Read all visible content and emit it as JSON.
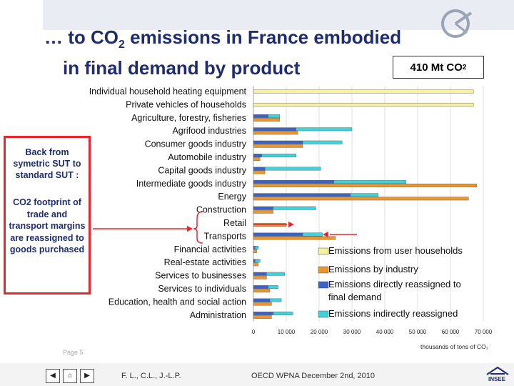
{
  "slide": {
    "title_line1_pre": "… to CO",
    "title_line1_sub": "2",
    "title_line1_post": " emissions in France embodied",
    "title_line2": "in final demand by product",
    "total_pre": "410 Mt CO",
    "total_sub": "2",
    "note_1": "Back from symetric SUT to standard SUT :",
    "note_2": "CO2 footprint of trade and transport margins are reassigned to goods purchased",
    "page_label": "Page 5",
    "footer_authors": "F. L., C.L., J.-L.P.",
    "footer_event": "OECD WPNA December 2nd, 2010",
    "logo_text": "INSEE"
  },
  "colors": {
    "title": "#1f2d6e",
    "user_households": "#f6f19c",
    "industry": "#e8962f",
    "direct": "#3b63c6",
    "indirect": "#3fd2d8",
    "annotation_red": "#e8262d"
  },
  "chart_data": {
    "type": "bar",
    "orientation": "horizontal",
    "stacked": true,
    "categories": [
      "Individual household heating equipment",
      "Private vehicles of households",
      "Agriculture, forestry, fisheries",
      "Agrifood industries",
      "Consumer goods industry",
      "Automobile industry",
      "Capital goods industry",
      "Intermediate goods industry",
      "Energy",
      "Construction",
      "Retail",
      "Transports",
      "Financial activities",
      "Real-estate activities",
      "Services to businesses",
      "Services to individuals",
      "Education, health and social action",
      "Administration"
    ],
    "bars": [
      [
        {
          "series": "user",
          "value": 67000
        }
      ],
      [
        {
          "series": "user",
          "value": 67000
        }
      ],
      [
        {
          "series": "direct",
          "value": 4500
        },
        {
          "series": "indirect",
          "value": 3500
        },
        {
          "series": "industry",
          "value": 8000
        }
      ],
      [
        {
          "series": "direct",
          "value": 13000
        },
        {
          "series": "indirect",
          "value": 17000
        },
        {
          "series": "industry",
          "value": 13500
        }
      ],
      [
        {
          "series": "direct",
          "value": 15000
        },
        {
          "series": "indirect",
          "value": 12000
        },
        {
          "series": "industry",
          "value": 15000
        }
      ],
      [
        {
          "series": "direct",
          "value": 2500
        },
        {
          "series": "indirect",
          "value": 10500
        },
        {
          "series": "industry",
          "value": 2000
        }
      ],
      [
        {
          "series": "direct",
          "value": 3500
        },
        {
          "series": "indirect",
          "value": 17000
        },
        {
          "series": "industry",
          "value": 3500
        }
      ],
      [
        {
          "series": "direct",
          "value": 24500
        },
        {
          "series": "indirect",
          "value": 22000
        },
        {
          "series": "industry",
          "value": 68000
        }
      ],
      [
        {
          "series": "direct",
          "value": 29500
        },
        {
          "series": "indirect",
          "value": 8500
        },
        {
          "series": "industry",
          "value": 65500
        }
      ],
      [
        {
          "series": "direct",
          "value": 6000
        },
        {
          "series": "indirect",
          "value": 13000
        },
        {
          "series": "industry",
          "value": 6000
        }
      ],
      [
        {
          "series": "industry",
          "value": 10000
        }
      ],
      [
        {
          "series": "direct",
          "value": 15000
        },
        {
          "series": "indirect",
          "value": 6000
        },
        {
          "series": "industry",
          "value": 25000
        }
      ],
      [
        {
          "series": "direct",
          "value": 500
        },
        {
          "series": "indirect",
          "value": 1000
        },
        {
          "series": "industry",
          "value": 1000
        }
      ],
      [
        {
          "series": "direct",
          "value": 500
        },
        {
          "series": "indirect",
          "value": 1500
        },
        {
          "series": "industry",
          "value": 1500
        }
      ],
      [
        {
          "series": "direct",
          "value": 4000
        },
        {
          "series": "indirect",
          "value": 5500
        },
        {
          "series": "industry",
          "value": 4000
        }
      ],
      [
        {
          "series": "direct",
          "value": 4500
        },
        {
          "series": "indirect",
          "value": 3000
        },
        {
          "series": "industry",
          "value": 5000
        }
      ],
      [
        {
          "series": "direct",
          "value": 5000
        },
        {
          "series": "indirect",
          "value": 3500
        },
        {
          "series": "industry",
          "value": 5500
        }
      ],
      [
        {
          "series": "direct",
          "value": 6000
        },
        {
          "series": "indirect",
          "value": 6000
        },
        {
          "series": "industry",
          "value": 5500
        }
      ]
    ],
    "series": [
      {
        "key": "user",
        "name": "Emissions from user households",
        "color": "#f6f19c"
      },
      {
        "key": "industry",
        "name": "Emissions by industry",
        "color": "#e8962f"
      },
      {
        "key": "direct",
        "name": "Emissions directly reassigned to final demand",
        "color": "#3b63c6"
      },
      {
        "key": "indirect",
        "name": "Emissions indirectly reassigned",
        "color": "#3fd2d8"
      }
    ],
    "xticks": [
      0,
      10000,
      20000,
      30000,
      40000,
      50000,
      60000,
      70000
    ],
    "xtick_labels": [
      "0",
      "10 000",
      "20 000",
      "30 000",
      "40 000",
      "50 000",
      "60 000",
      "70 000"
    ],
    "xlim": [
      0,
      70000
    ],
    "xlabel": "thousands of tons of CO₂",
    "grid": "vertical",
    "legend_position": "bottom-right",
    "bracket_categories": [
      "Retail",
      "Transports"
    ]
  }
}
